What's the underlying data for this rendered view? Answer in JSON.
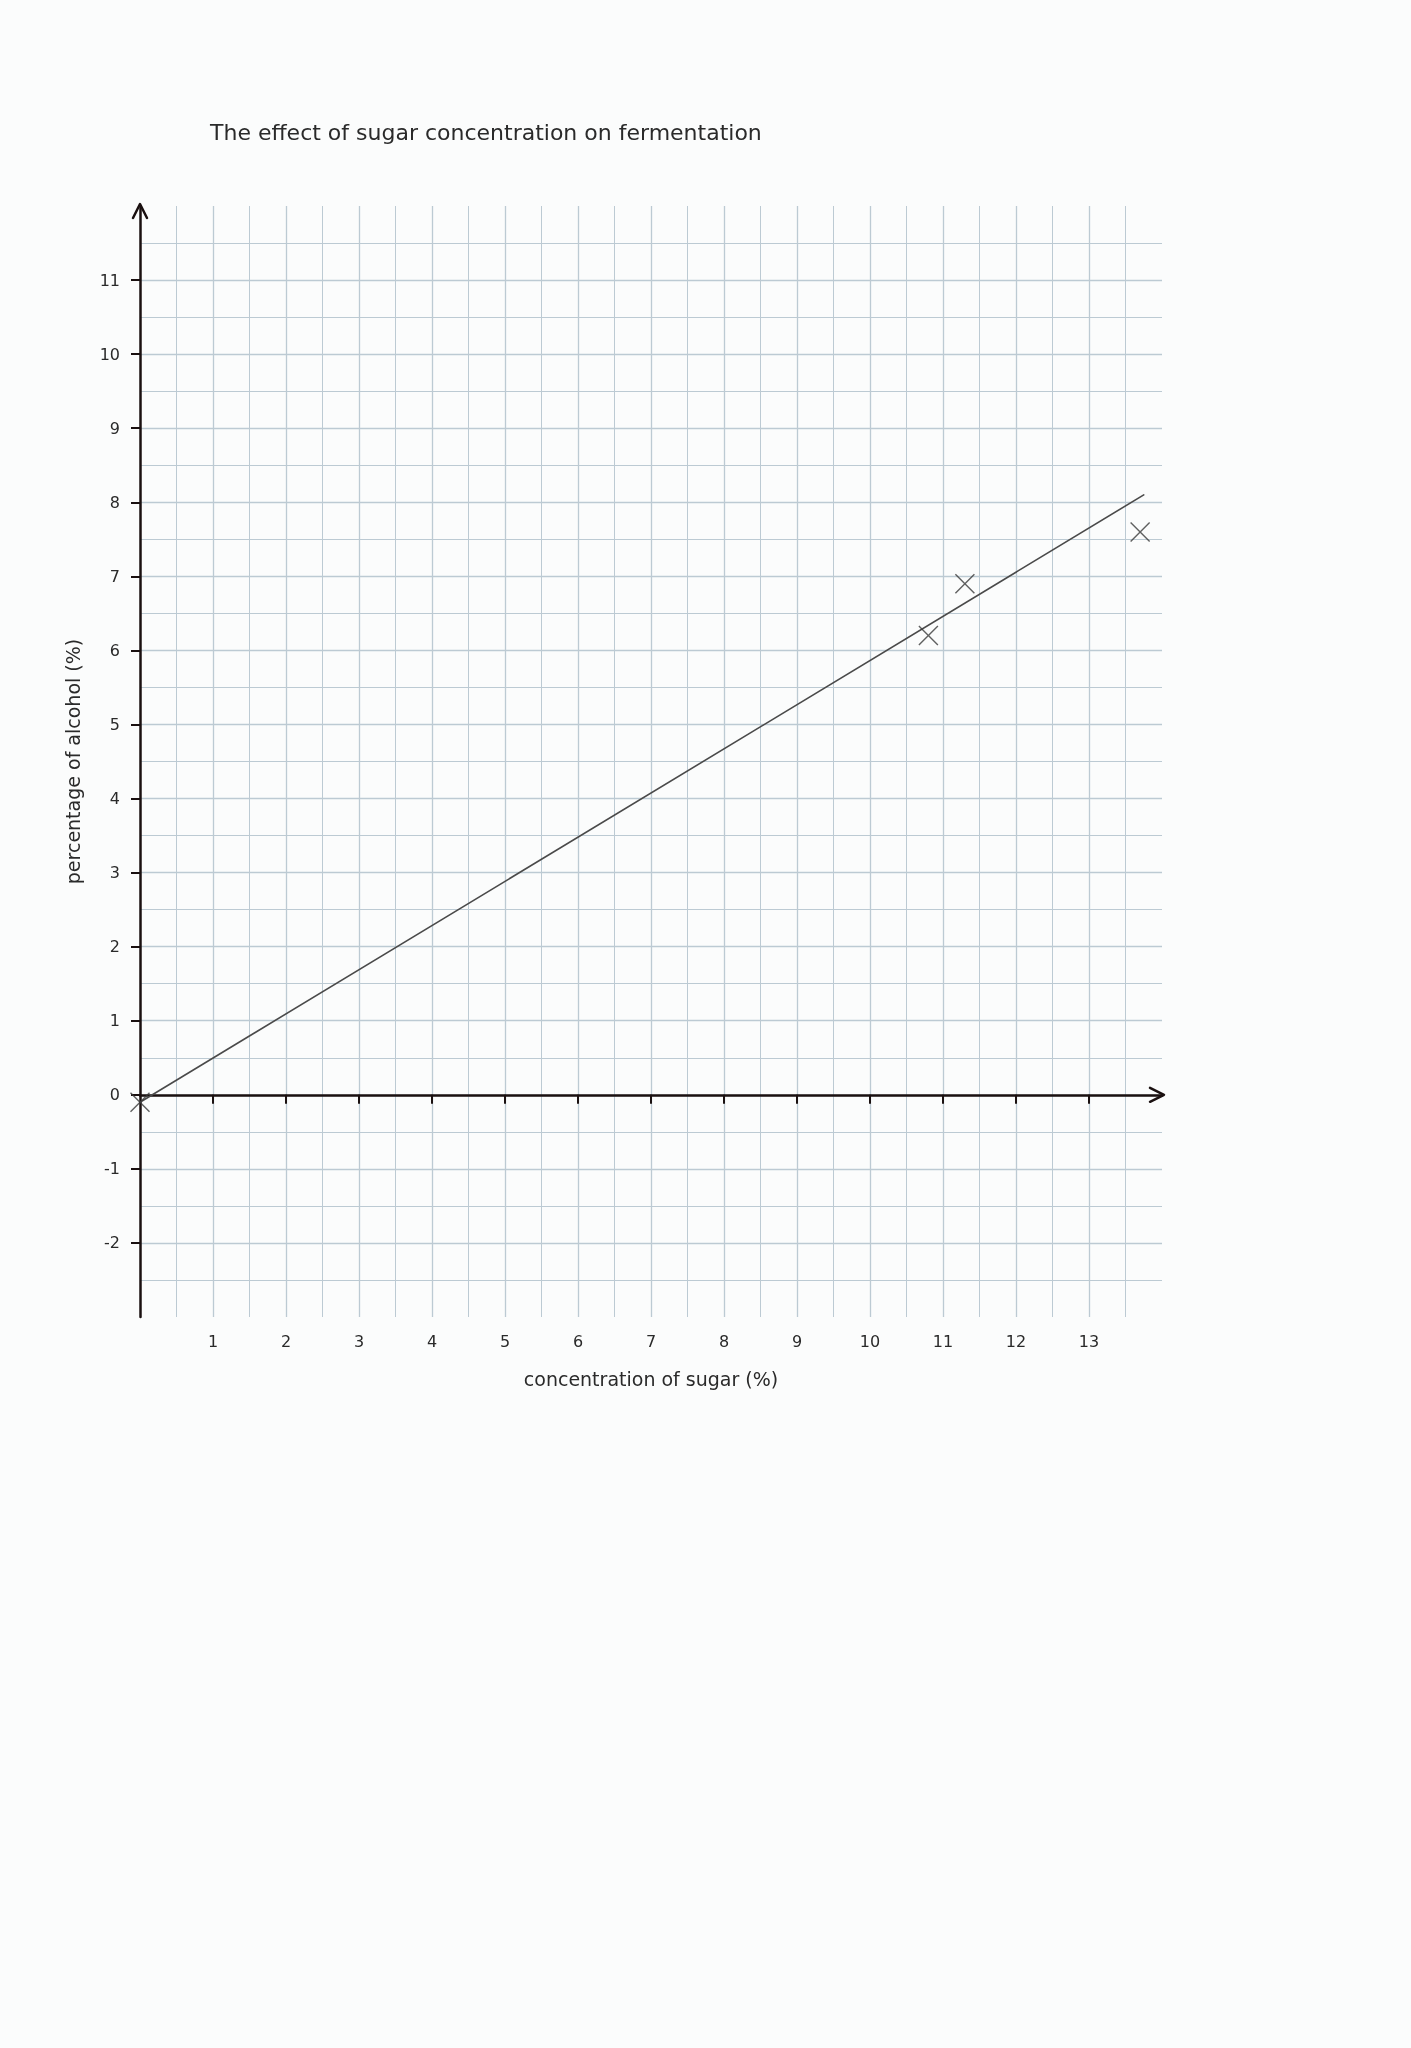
{
  "chart_data": {
    "type": "scatter",
    "title": "The effect of sugar concentration on fermentation",
    "xlabel": "concentration of sugar (%)",
    "ylabel": "percentage of alcohol (%)",
    "xlim": [
      0,
      14
    ],
    "ylim": [
      -3,
      12
    ],
    "xticks": [
      1,
      2,
      3,
      4,
      5,
      6,
      7,
      8,
      9,
      10,
      11,
      12,
      13
    ],
    "yticks": [
      -2,
      -1,
      0,
      1,
      2,
      3,
      4,
      5,
      6,
      7,
      8,
      9,
      10,
      11
    ],
    "grid": true,
    "series": [
      {
        "type": "line",
        "x": [
          0,
          13.75
        ],
        "values": [
          -0.1,
          8.1
        ],
        "color": "#4a4a4a",
        "marker": "none",
        "line_style": "solid"
      },
      {
        "x": [
          0,
          10.8,
          11.3,
          13.7
        ],
        "values": [
          -0.1,
          6.2,
          6.9,
          7.6
        ],
        "color": "#3a3a3a",
        "marker": "cross"
      }
    ]
  }
}
